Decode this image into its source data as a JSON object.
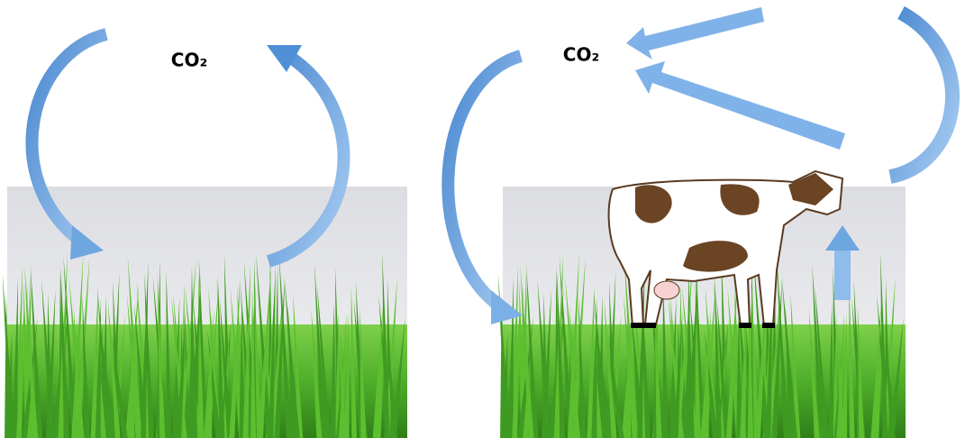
{
  "panels": [
    {
      "label": "CO₂"
    },
    {
      "label": "CO₂"
    }
  ]
}
